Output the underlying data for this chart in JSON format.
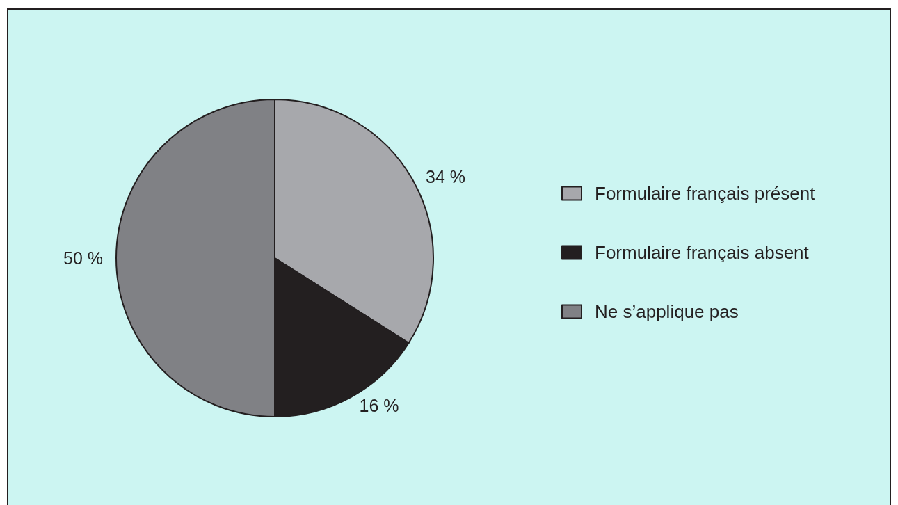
{
  "chart_data": {
    "type": "pie",
    "categories": [
      "Formulaire français présent",
      "Formulaire français absent",
      "Ne s’applique pas"
    ],
    "values": [
      34,
      16,
      50
    ],
    "colors": [
      "#a7a8ac",
      "#231f20",
      "#808185"
    ],
    "value_labels": [
      "34 %",
      "16 %",
      "50 %"
    ],
    "legend": "right"
  }
}
